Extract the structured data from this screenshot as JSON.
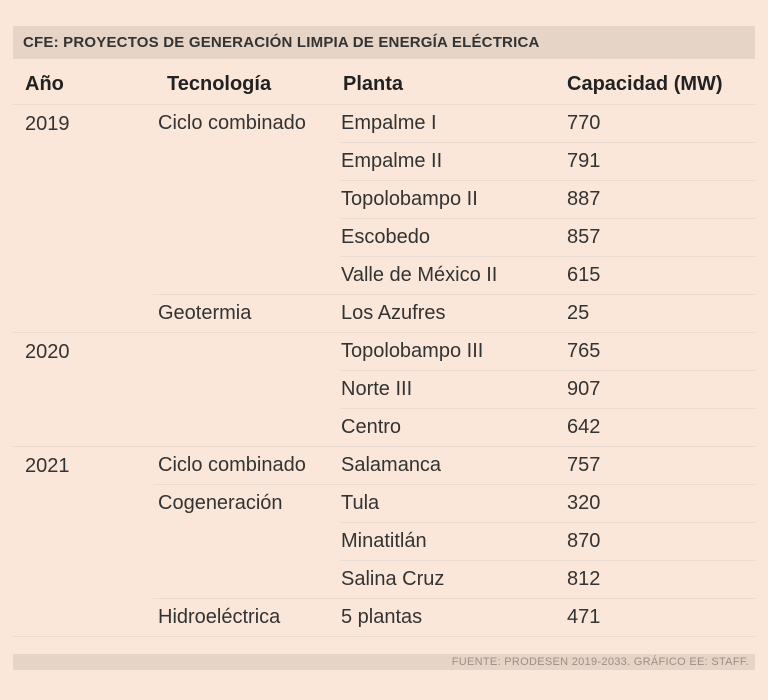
{
  "title": "CFE: PROYECTOS DE GENERACIÓN LIMPIA DE ENERGÍA ELÉCTRICA",
  "footer": "FUENTE: PRODESEN 2019-2033. GRÁFICO EE: STAFF.",
  "colors": {
    "background": "#fbe7d9",
    "bar": "#e6d4c7",
    "rule": "#eadbd0"
  },
  "chart_data": {
    "type": "table",
    "title": "CFE: PROYECTOS DE GENERACIÓN LIMPIA DE ENERGÍA ELÉCTRICA",
    "columns": [
      "Año",
      "Tecnología",
      "Planta",
      "Capacidad (MW)"
    ],
    "rows": [
      {
        "year": "2019",
        "technology": "Ciclo combinado",
        "plant": "Empalme I",
        "capacity": "770"
      },
      {
        "year": "",
        "technology": "",
        "plant": "Empalme II",
        "capacity": "791"
      },
      {
        "year": "",
        "technology": "",
        "plant": "Topolobampo II",
        "capacity": "887"
      },
      {
        "year": "",
        "technology": "",
        "plant": "Escobedo",
        "capacity": "857"
      },
      {
        "year": "",
        "technology": "",
        "plant": "Valle de México II",
        "capacity": "615"
      },
      {
        "year": "",
        "technology": "Geotermia",
        "plant": "Los Azufres",
        "capacity": "25"
      },
      {
        "year": "2020",
        "technology": "",
        "plant": "Topolobampo III",
        "capacity": "765"
      },
      {
        "year": "",
        "technology": "",
        "plant": "Norte III",
        "capacity": "907"
      },
      {
        "year": "",
        "technology": "",
        "plant": "Centro",
        "capacity": "642"
      },
      {
        "year": "2021",
        "technology": "Ciclo combinado",
        "plant": "Salamanca",
        "capacity": "757"
      },
      {
        "year": "",
        "technology": "Cogeneración",
        "plant": "Tula",
        "capacity": "320"
      },
      {
        "year": "",
        "technology": "",
        "plant": "Minatitlán",
        "capacity": "870"
      },
      {
        "year": "",
        "technology": "",
        "plant": "Salina Cruz",
        "capacity": "812"
      },
      {
        "year": "",
        "technology": "Hidroeléctrica",
        "plant": "5 plantas",
        "capacity": "471"
      }
    ],
    "source": "FUENTE: PRODESEN 2019-2033. GRÁFICO EE: STAFF."
  }
}
